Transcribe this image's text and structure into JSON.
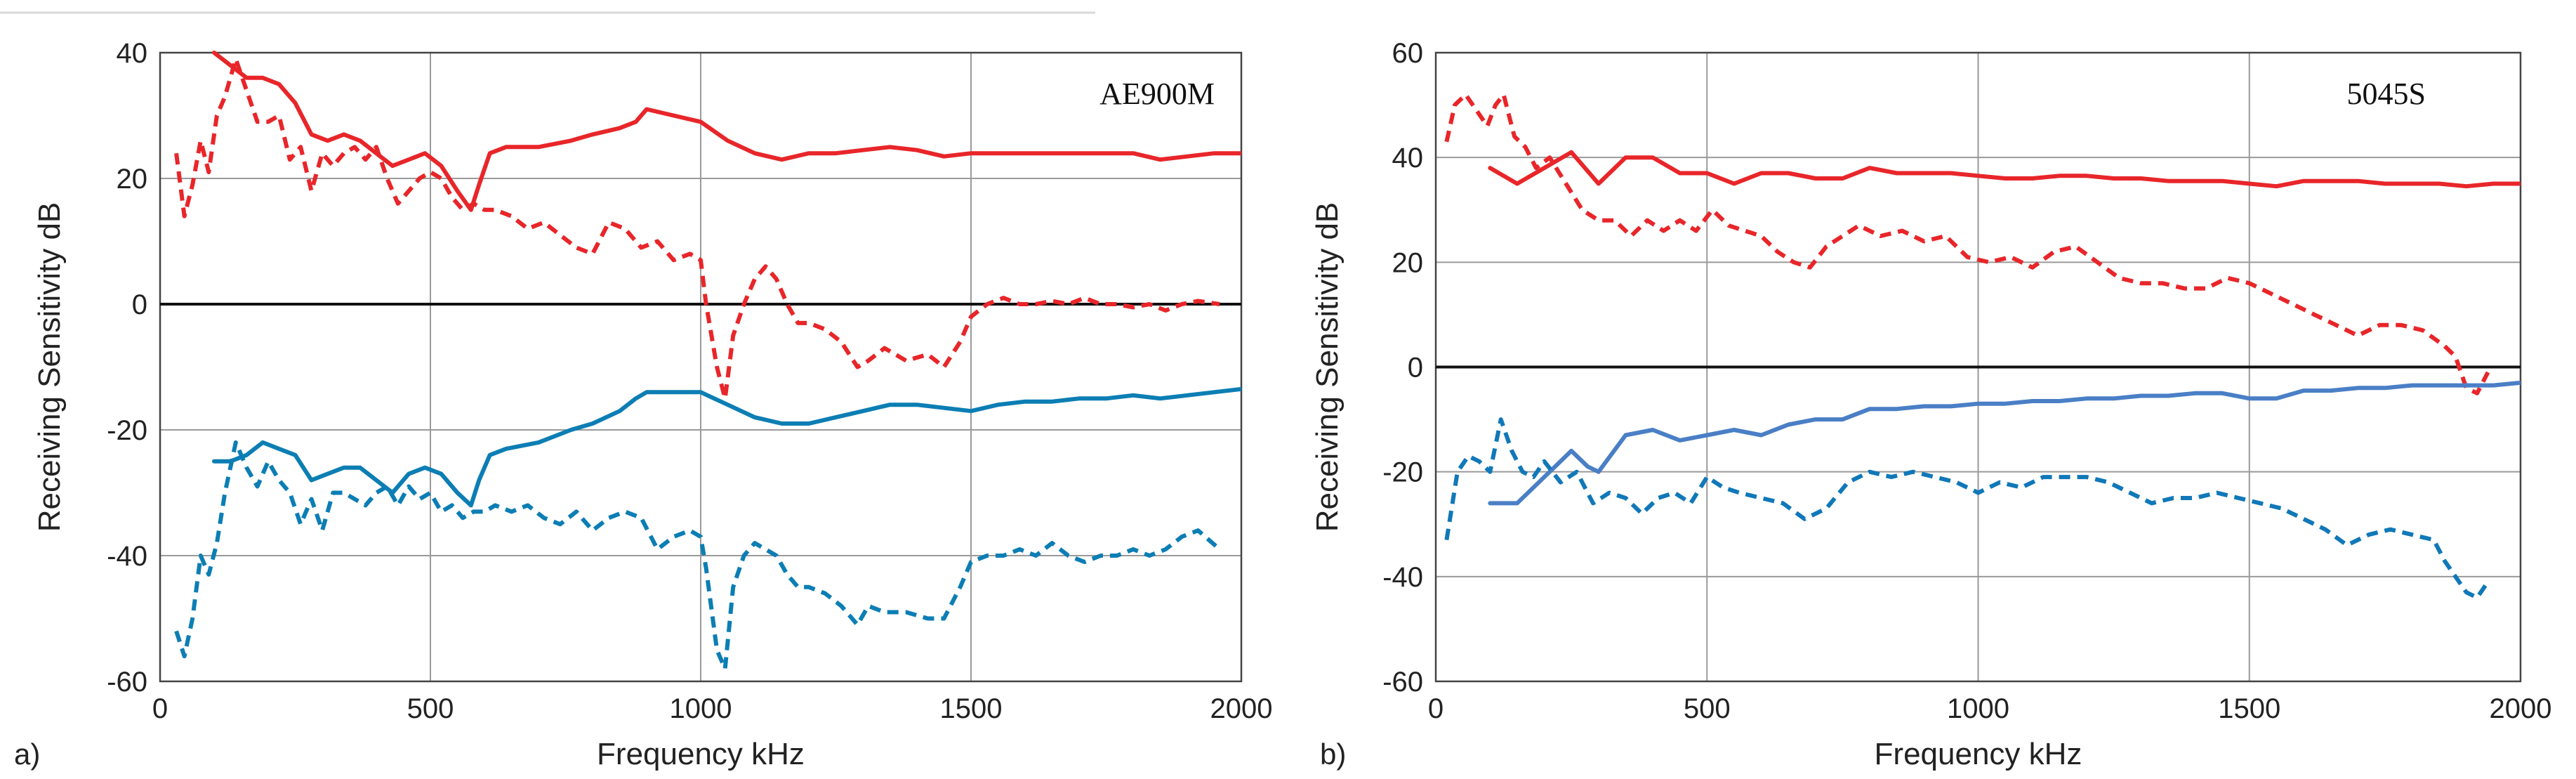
{
  "chart_data": [
    {
      "type": "line",
      "panel_label": "a)",
      "title": "AE900M",
      "xlabel": "Frequency  kHz",
      "ylabel": "Receiving Sensitivity  dB",
      "xlim": [
        0,
        2000
      ],
      "ylim": [
        -60,
        40
      ],
      "xticks": [
        0,
        500,
        1000,
        1500,
        2000
      ],
      "yticks": [
        -60,
        -40,
        -20,
        0,
        20,
        40
      ],
      "grid": true,
      "zero_line": true,
      "series": [
        {
          "name": "red solid",
          "color": "#e8262a",
          "dash": "solid",
          "x": [
            100,
            130,
            160,
            190,
            220,
            250,
            280,
            310,
            340,
            370,
            400,
            430,
            460,
            490,
            520,
            550,
            575,
            590,
            610,
            640,
            700,
            760,
            800,
            850,
            880,
            900,
            950,
            1000,
            1050,
            1100,
            1150,
            1200,
            1250,
            1300,
            1350,
            1400,
            1450,
            1500,
            1550,
            1600,
            1650,
            1700,
            1750,
            1800,
            1850,
            1900,
            1950,
            2000
          ],
          "y": [
            40,
            38,
            36,
            36,
            35,
            32,
            27,
            26,
            27,
            26,
            24,
            22,
            23,
            24,
            22,
            18,
            15,
            19,
            24,
            25,
            25,
            26,
            27,
            28,
            29,
            31,
            30,
            29,
            26,
            24,
            23,
            24,
            24,
            24.5,
            25,
            24.5,
            23.5,
            24,
            24,
            24,
            24,
            24,
            24,
            24,
            23,
            23.5,
            24,
            24
          ]
        },
        {
          "name": "red dashed",
          "color": "#e8262a",
          "dash": "dashed",
          "x": [
            30,
            45,
            60,
            75,
            90,
            105,
            120,
            140,
            160,
            180,
            200,
            220,
            240,
            260,
            280,
            300,
            320,
            340,
            360,
            380,
            400,
            420,
            440,
            460,
            480,
            500,
            520,
            540,
            560,
            580,
            600,
            620,
            650,
            680,
            710,
            740,
            770,
            800,
            830,
            860,
            890,
            920,
            950,
            980,
            1000,
            1010,
            1030,
            1045,
            1060,
            1080,
            1100,
            1120,
            1140,
            1160,
            1180,
            1200,
            1230,
            1260,
            1290,
            1310,
            1340,
            1380,
            1420,
            1450,
            1480,
            1500,
            1530,
            1560,
            1590,
            1620,
            1650,
            1680,
            1710,
            1740,
            1770,
            1800,
            1830,
            1860,
            1890,
            1920,
            1960
          ],
          "y": [
            24,
            14,
            19,
            26,
            21,
            30,
            33,
            39,
            34,
            29,
            29,
            30,
            23,
            25,
            18,
            24,
            22,
            24,
            25,
            23,
            25,
            20,
            16,
            18,
            20,
            21,
            20,
            17,
            15,
            16,
            15,
            15,
            14,
            12,
            13,
            11,
            9,
            8,
            13,
            12,
            9,
            10,
            7,
            8,
            7,
            0,
            -10,
            -15,
            -5,
            0,
            4,
            6,
            4,
            0,
            -3,
            -3,
            -4,
            -6,
            -10,
            -9,
            -7,
            -9,
            -8,
            -10,
            -6,
            -2,
            0,
            1,
            0,
            0,
            0.5,
            0,
            1,
            0,
            0,
            -0.5,
            0,
            -1,
            0,
            0.5,
            0
          ]
        },
        {
          "name": "blue solid",
          "color": "#0c7eb4",
          "dash": "solid",
          "x": [
            100,
            130,
            160,
            190,
            220,
            250,
            280,
            310,
            340,
            370,
            400,
            430,
            460,
            490,
            520,
            550,
            575,
            590,
            610,
            640,
            700,
            760,
            800,
            850,
            880,
            900,
            950,
            1000,
            1050,
            1100,
            1150,
            1200,
            1250,
            1300,
            1350,
            1400,
            1450,
            1500,
            1550,
            1600,
            1650,
            1700,
            1750,
            1800,
            1850,
            1900,
            1950,
            2000
          ],
          "y": [
            -25,
            -25,
            -24,
            -22,
            -23,
            -24,
            -28,
            -27,
            -26,
            -26,
            -28,
            -30,
            -27,
            -26,
            -27,
            -30,
            -32,
            -28,
            -24,
            -23,
            -22,
            -20,
            -19,
            -17,
            -15,
            -14,
            -14,
            -14,
            -16,
            -18,
            -19,
            -19,
            -18,
            -17,
            -16,
            -16,
            -16.5,
            -17,
            -16,
            -15.5,
            -15.5,
            -15,
            -15,
            -14.5,
            -15,
            -14.5,
            -14,
            -13.5
          ]
        },
        {
          "name": "blue dashed",
          "color": "#0c7eb4",
          "dash": "dashed",
          "x": [
            30,
            45,
            60,
            75,
            90,
            105,
            120,
            140,
            160,
            180,
            200,
            220,
            240,
            260,
            280,
            300,
            320,
            340,
            360,
            380,
            400,
            420,
            440,
            460,
            480,
            500,
            520,
            540,
            560,
            580,
            600,
            620,
            650,
            680,
            710,
            740,
            770,
            800,
            830,
            860,
            890,
            920,
            950,
            980,
            1000,
            1010,
            1030,
            1045,
            1060,
            1080,
            1100,
            1120,
            1140,
            1160,
            1180,
            1200,
            1230,
            1260,
            1290,
            1310,
            1340,
            1380,
            1420,
            1450,
            1480,
            1500,
            1530,
            1560,
            1590,
            1620,
            1650,
            1680,
            1710,
            1740,
            1770,
            1800,
            1830,
            1860,
            1890,
            1920,
            1960
          ],
          "y": [
            -52,
            -56,
            -50,
            -40,
            -43,
            -38,
            -30,
            -22,
            -26,
            -29,
            -25,
            -28,
            -30,
            -35,
            -31,
            -36,
            -30,
            -30,
            -31,
            -32,
            -30,
            -29,
            -32,
            -29,
            -31,
            -30,
            -33,
            -32,
            -34,
            -33,
            -33,
            -32,
            -33,
            -32,
            -34,
            -35,
            -33,
            -36,
            -34,
            -33,
            -34,
            -39,
            -37,
            -36,
            -37,
            -42,
            -55,
            -58,
            -45,
            -40,
            -38,
            -39,
            -40,
            -43,
            -45,
            -45,
            -46,
            -48,
            -51,
            -48,
            -49,
            -49,
            -50,
            -50,
            -45,
            -41,
            -40,
            -40,
            -39,
            -40,
            -38,
            -40,
            -41,
            -40,
            -40,
            -39,
            -40,
            -39,
            -37,
            -36,
            -39
          ]
        }
      ]
    },
    {
      "type": "line",
      "panel_label": "b)",
      "title": "5045S",
      "xlabel": "Frequency  kHz",
      "ylabel": "Receiving Sensitivity  dB",
      "xlim": [
        0,
        2000
      ],
      "ylim": [
        -60,
        60
      ],
      "xticks": [
        0,
        500,
        1000,
        1500,
        2000
      ],
      "yticks": [
        -60,
        -40,
        -20,
        0,
        20,
        40,
        60
      ],
      "grid": true,
      "zero_line": true,
      "series": [
        {
          "name": "red solid",
          "color": "#e8262a",
          "dash": "solid",
          "x": [
            100,
            150,
            200,
            250,
            300,
            350,
            400,
            450,
            500,
            550,
            600,
            650,
            700,
            750,
            800,
            850,
            900,
            950,
            1000,
            1050,
            1100,
            1150,
            1200,
            1250,
            1300,
            1350,
            1400,
            1450,
            1500,
            1550,
            1600,
            1650,
            1700,
            1750,
            1800,
            1850,
            1900,
            1950,
            2000
          ],
          "y": [
            38,
            35,
            38,
            41,
            35,
            40,
            40,
            37,
            37,
            35,
            37,
            37,
            36,
            36,
            38,
            37,
            37,
            37,
            36.5,
            36,
            36,
            36.5,
            36.5,
            36,
            36,
            35.5,
            35.5,
            35.5,
            35,
            34.5,
            35.5,
            35.5,
            35.5,
            35,
            35,
            35,
            34.5,
            35,
            35
          ]
        },
        {
          "name": "red dashed",
          "color": "#e8262a",
          "dash": "dashed",
          "x": [
            20,
            35,
            55,
            75,
            95,
            110,
            125,
            145,
            165,
            185,
            210,
            240,
            270,
            300,
            330,
            360,
            390,
            420,
            450,
            480,
            510,
            540,
            570,
            600,
            630,
            660,
            690,
            720,
            750,
            780,
            820,
            860,
            900,
            940,
            980,
            1020,
            1060,
            1100,
            1140,
            1180,
            1220,
            1260,
            1300,
            1340,
            1380,
            1420,
            1460,
            1500,
            1540,
            1580,
            1620,
            1660,
            1700,
            1740,
            1780,
            1820,
            1860,
            1880,
            1900,
            1920,
            1940
          ],
          "y": [
            43,
            50,
            52,
            49,
            46,
            50,
            52,
            44,
            42,
            38,
            40,
            35,
            30,
            28,
            28,
            25,
            28,
            26,
            28,
            26,
            30,
            27,
            26,
            25,
            22,
            20,
            19,
            23,
            25,
            27,
            25,
            26,
            24,
            25,
            21,
            20,
            21,
            19,
            22,
            23,
            20,
            17,
            16,
            16,
            15,
            15,
            17,
            16,
            14,
            12,
            10,
            8,
            6,
            8,
            8,
            7,
            4,
            2,
            -4,
            -5,
            -1
          ]
        },
        {
          "name": "blue solid",
          "color": "#4a7fc6",
          "dash": "solid",
          "x": [
            100,
            150,
            200,
            250,
            280,
            300,
            350,
            400,
            450,
            500,
            550,
            600,
            650,
            700,
            750,
            800,
            850,
            900,
            950,
            1000,
            1050,
            1100,
            1150,
            1200,
            1250,
            1300,
            1350,
            1400,
            1450,
            1500,
            1550,
            1600,
            1650,
            1700,
            1750,
            1800,
            1850,
            1900,
            1950,
            2000
          ],
          "y": [
            -26,
            -26,
            -21,
            -16,
            -19,
            -20,
            -13,
            -12,
            -14,
            -13,
            -12,
            -13,
            -11,
            -10,
            -10,
            -8,
            -8,
            -7.5,
            -7.5,
            -7,
            -7,
            -6.5,
            -6.5,
            -6,
            -6,
            -5.5,
            -5.5,
            -5,
            -5,
            -6,
            -6,
            -4.5,
            -4.5,
            -4,
            -4,
            -3.5,
            -3.5,
            -3.5,
            -3.5,
            -3
          ]
        },
        {
          "name": "blue dashed",
          "color": "#1078b8",
          "dash": "dashed",
          "x": [
            20,
            40,
            60,
            80,
            100,
            120,
            140,
            160,
            180,
            200,
            230,
            260,
            290,
            320,
            350,
            380,
            410,
            440,
            470,
            500,
            530,
            560,
            600,
            640,
            680,
            720,
            760,
            800,
            840,
            880,
            920,
            960,
            1000,
            1040,
            1080,
            1120,
            1160,
            1200,
            1240,
            1280,
            1320,
            1360,
            1400,
            1440,
            1480,
            1520,
            1560,
            1600,
            1640,
            1680,
            1720,
            1760,
            1800,
            1840,
            1860,
            1880,
            1900,
            1920,
            1940
          ],
          "y": [
            -33,
            -20,
            -17,
            -18,
            -20,
            -10,
            -16,
            -20,
            -21,
            -18,
            -22,
            -20,
            -26,
            -24,
            -25,
            -28,
            -25,
            -24,
            -26,
            -21,
            -23,
            -24,
            -25,
            -26,
            -29,
            -27,
            -22,
            -20,
            -21,
            -20,
            -21,
            -22,
            -24,
            -22,
            -23,
            -21,
            -21,
            -21,
            -22,
            -24,
            -26,
            -25,
            -25,
            -24,
            -25,
            -26,
            -27,
            -29,
            -31,
            -34,
            -32,
            -31,
            -32,
            -33,
            -37,
            -40,
            -43,
            -44,
            -41
          ]
        }
      ]
    }
  ]
}
